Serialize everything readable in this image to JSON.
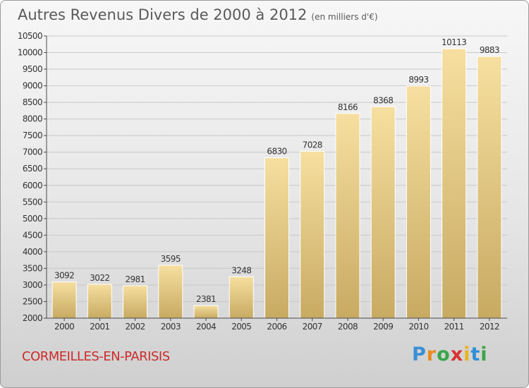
{
  "header": {
    "title": "Autres Revenus Divers de 2000 à 2012",
    "unit": "(en milliers d'€)"
  },
  "footer": {
    "city": "CORMEILLES-EN-PARISIS"
  },
  "logo": {
    "letters": [
      "P",
      "r",
      "o",
      "x",
      "i",
      "t",
      "i"
    ],
    "colors": [
      "#3a8fd6",
      "#e98a1f",
      "#3aa64a",
      "#d83232",
      "#e8b51c",
      "#2f8fd8",
      "#3aa64a"
    ]
  },
  "colors": {
    "bar_light": "#f6dfa0",
    "bar_dark": "#c8aa62",
    "grid": "#c8c8c8",
    "axis": "#4a4a4a",
    "text": "#333333"
  },
  "chart_data": {
    "type": "bar",
    "categories": [
      "2000",
      "2001",
      "2002",
      "2003",
      "2004",
      "2005",
      "2006",
      "2007",
      "2008",
      "2009",
      "2010",
      "2011",
      "2012"
    ],
    "values": [
      3092,
      3022,
      2981,
      3595,
      2381,
      3248,
      6830,
      7028,
      8166,
      8368,
      8993,
      10113,
      9883
    ],
    "ylim": [
      2000,
      10500
    ],
    "yticks": [
      2000,
      2500,
      3000,
      3500,
      4000,
      4500,
      5000,
      5500,
      6000,
      6500,
      7000,
      7500,
      8000,
      8500,
      9000,
      9500,
      10000,
      10500
    ],
    "grid": true,
    "value_labels": true
  }
}
